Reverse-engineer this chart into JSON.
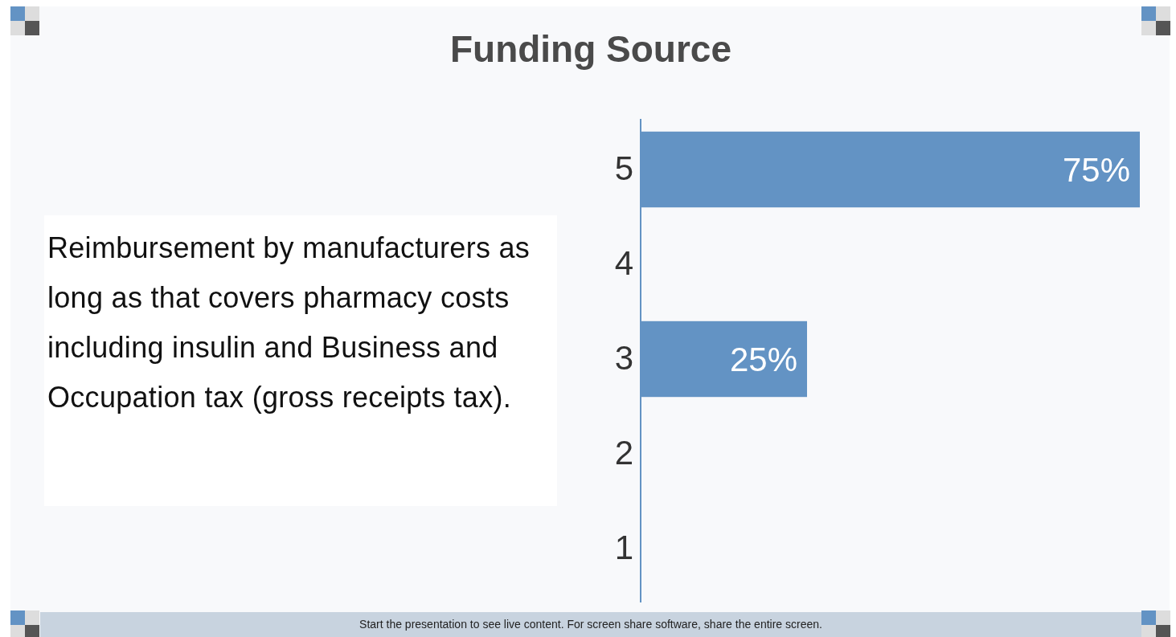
{
  "chart_data": {
    "type": "bar",
    "orientation": "horizontal",
    "title": "Funding Source",
    "categories": [
      "5",
      "4",
      "3",
      "2",
      "1"
    ],
    "values": [
      75,
      0,
      25,
      0,
      0
    ],
    "value_labels": [
      "75%",
      null,
      "25%",
      null,
      null
    ],
    "color": "#6393c4",
    "xlim": [
      0,
      75
    ],
    "tick_labels": "y",
    "annotations": [
      "Reimbursement by manufacturers as long as that covers pharmacy costs including insulin and Business and Occupation tax (gross receipts tax).",
      "Start the presentation to see live content. For screen share software, share the entire screen."
    ]
  }
}
